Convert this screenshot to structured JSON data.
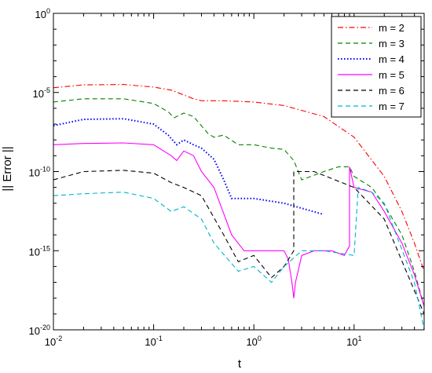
{
  "chart_data": {
    "type": "line",
    "xlabel": "t",
    "ylabel": "|| Error ||",
    "x_scale": "log",
    "y_scale": "log",
    "xlim": [
      0.01,
      50
    ],
    "ylim": [
      1e-20,
      1
    ],
    "x_ticks": [
      {
        "value": 0.01,
        "base": "10",
        "exp": "-2"
      },
      {
        "value": 0.1,
        "base": "10",
        "exp": "-1"
      },
      {
        "value": 1,
        "base": "10",
        "exp": "0"
      },
      {
        "value": 10,
        "base": "10",
        "exp": "1"
      }
    ],
    "y_ticks": [
      {
        "value": 1,
        "base": "10",
        "exp": "0"
      },
      {
        "value": 1e-05,
        "base": "10",
        "exp": "-5"
      },
      {
        "value": 1e-10,
        "base": "10",
        "exp": "-10"
      },
      {
        "value": 1e-15,
        "base": "10",
        "exp": "-15"
      },
      {
        "value": 1e-20,
        "base": "10",
        "exp": "-20"
      }
    ],
    "grid": false,
    "legend_position": "top-right",
    "series": [
      {
        "name": "m = 2",
        "color": "#ff0000",
        "dash": "dash-dot",
        "x": [
          0.01,
          0.02,
          0.05,
          0.1,
          0.15,
          0.2,
          0.25,
          0.3,
          0.5,
          1,
          2,
          5,
          10,
          20,
          30,
          40,
          50
        ],
        "y": [
          2e-05,
          3e-05,
          3.2e-05,
          2.2e-05,
          1.4e-05,
          7e-06,
          4e-06,
          3e-06,
          3e-06,
          2.5e-06,
          1.5e-06,
          3e-07,
          1.5e-08,
          5e-11,
          3e-13,
          3e-15,
          5e-17
        ]
      },
      {
        "name": "m = 3",
        "color": "#008000",
        "dash": "dashed",
        "x": [
          0.01,
          0.02,
          0.05,
          0.1,
          0.14,
          0.16,
          0.2,
          0.25,
          0.35,
          0.4,
          0.5,
          0.7,
          1,
          1.5,
          2,
          2.5,
          3,
          5,
          7,
          9,
          10,
          15,
          20,
          30,
          40,
          50
        ],
        "y": [
          2.5e-06,
          4e-06,
          4e-06,
          2e-06,
          6e-07,
          2.5e-07,
          5e-07,
          3e-07,
          2.5e-08,
          1.5e-08,
          2e-08,
          5e-09,
          5e-09,
          3e-09,
          2.5e-09,
          5e-10,
          3e-11,
          1e-10,
          2e-10,
          2e-10,
          5e-11,
          1e-11,
          8e-13,
          1e-14,
          5e-17,
          3e-19
        ]
      },
      {
        "name": "m = 4",
        "color": "#0000ff",
        "dash": "dotted",
        "x": [
          0.01,
          0.02,
          0.05,
          0.1,
          0.14,
          0.17,
          0.2,
          0.25,
          0.3,
          0.4,
          0.5,
          0.6,
          0.7,
          1,
          2,
          4.9
        ],
        "y": [
          8e-08,
          2e-07,
          2.2e-07,
          1e-07,
          2e-08,
          5e-09,
          1e-08,
          5e-09,
          3e-09,
          6e-10,
          3e-11,
          2e-12,
          2e-12,
          2e-12,
          1e-12,
          2e-13
        ]
      },
      {
        "name": "m = 5",
        "color": "#ff00ff",
        "dash": "solid",
        "x": [
          0.01,
          0.02,
          0.05,
          0.1,
          0.15,
          0.17,
          0.2,
          0.25,
          0.3,
          0.4,
          0.6,
          0.8,
          1,
          2,
          2.2,
          2.4,
          2.5,
          2.6,
          3,
          4,
          6,
          8,
          9,
          9,
          10,
          15,
          20,
          30,
          40,
          50
        ],
        "y": [
          5e-09,
          6e-09,
          6.5e-09,
          5e-09,
          1e-09,
          5e-10,
          2e-09,
          1e-09,
          1e-10,
          1e-11,
          1e-14,
          1e-15,
          1e-15,
          1e-15,
          3e-16,
          1e-17,
          1e-18,
          1e-17,
          5e-16,
          1e-15,
          1e-15,
          5e-16,
          2e-15,
          2e-10,
          1e-11,
          5e-12,
          3e-13,
          3e-15,
          3e-17,
          3e-19
        ]
      },
      {
        "name": "m = 6",
        "color": "#000000",
        "dash": "dashed",
        "x": [
          0.01,
          0.02,
          0.05,
          0.1,
          0.15,
          0.2,
          0.3,
          0.5,
          0.7,
          1,
          1.5,
          2,
          2.5,
          2.5,
          2.8,
          3,
          3.3,
          4,
          10,
          20,
          40,
          50
        ],
        "y": [
          3e-11,
          1e-10,
          1.2e-10,
          8e-11,
          2e-11,
          1e-11,
          3e-12,
          1e-14,
          2e-16,
          5e-16,
          2e-17,
          1e-16,
          1e-15,
          1e-10,
          1e-10,
          1e-10,
          1e-10,
          1e-10,
          1e-11,
          1e-13,
          3e-18,
          1e-19
        ]
      },
      {
        "name": "m = 7",
        "color": "#00b4c8",
        "dash": "dashed",
        "x": [
          0.01,
          0.02,
          0.05,
          0.1,
          0.15,
          0.2,
          0.3,
          0.4,
          0.7,
          1,
          1.5,
          2,
          3,
          5,
          10,
          11,
          15,
          20,
          40,
          50
        ],
        "y": [
          3e-12,
          4e-12,
          5e-12,
          2e-12,
          3e-13,
          6e-13,
          1e-13,
          3e-15,
          5e-17,
          1e-16,
          1e-17,
          1e-16,
          1e-15,
          1e-15,
          5e-16,
          1e-11,
          5e-12,
          1e-12,
          1e-17,
          1e-20
        ]
      }
    ]
  }
}
